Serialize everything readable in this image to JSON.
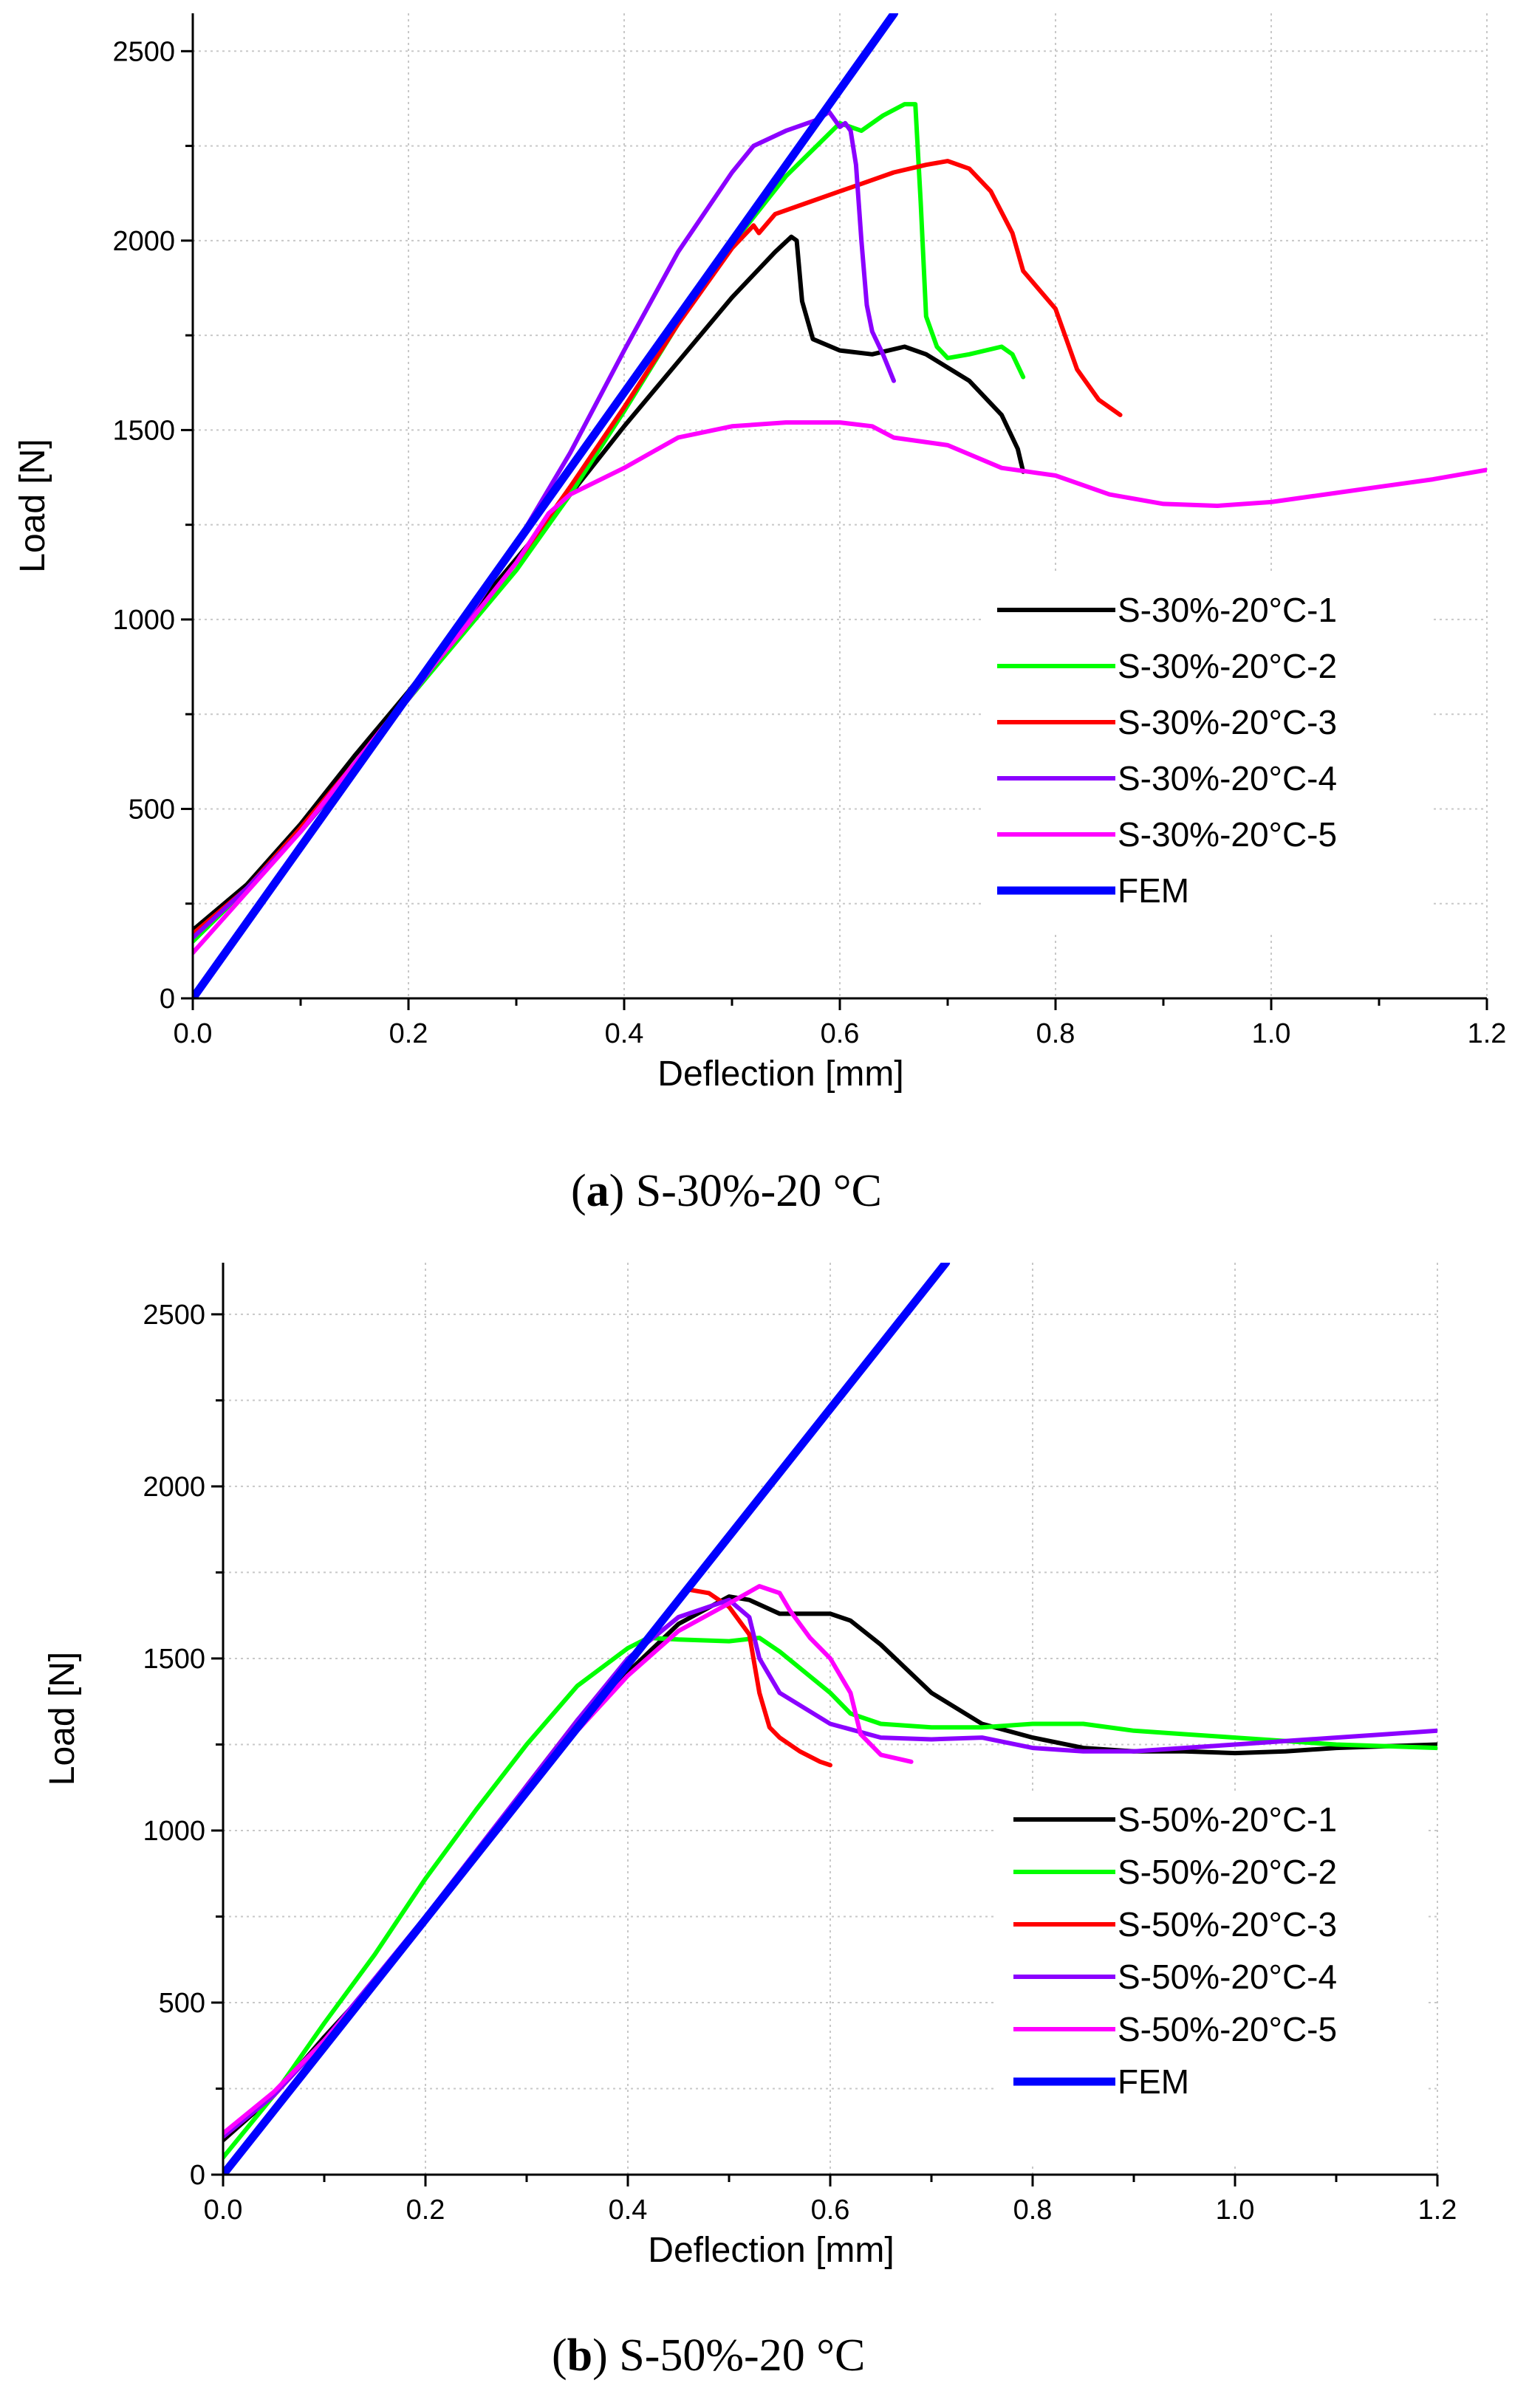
{
  "chart_data": [
    {
      "type": "line",
      "caption_letter": "a",
      "caption_rest": ") S-30%-20 °C",
      "caption_open": "(",
      "xlabel": "Deflection [mm]",
      "ylabel": "Load [N]",
      "xlim": [
        0,
        1.2
      ],
      "ylim": [
        0,
        2600
      ],
      "xticks": [
        "0.0",
        "0.2",
        "0.4",
        "0.6",
        "0.8",
        "1.0",
        "1.2"
      ],
      "yticks": [
        "0",
        "500",
        "1000",
        "1500",
        "2000",
        "2500"
      ],
      "legend_position": "right",
      "series": [
        {
          "name": "S-30%-20°C-1",
          "color": "#000000",
          "x": [
            0,
            0.05,
            0.1,
            0.15,
            0.2,
            0.25,
            0.3,
            0.35,
            0.4,
            0.45,
            0.5,
            0.54,
            0.555,
            0.56,
            0.565,
            0.575,
            0.6,
            0.63,
            0.66,
            0.68,
            0.72,
            0.75,
            0.765,
            0.77
          ],
          "y": [
            180,
            300,
            460,
            640,
            810,
            990,
            1160,
            1330,
            1510,
            1680,
            1850,
            1970,
            2010,
            2000,
            1840,
            1740,
            1710,
            1700,
            1720,
            1700,
            1630,
            1540,
            1450,
            1390
          ]
        },
        {
          "name": "S-30%-20°C-2",
          "color": "#00ff00",
          "x": [
            0,
            0.05,
            0.1,
            0.15,
            0.2,
            0.25,
            0.3,
            0.35,
            0.4,
            0.45,
            0.5,
            0.55,
            0.6,
            0.62,
            0.64,
            0.66,
            0.67,
            0.675,
            0.68,
            0.69,
            0.7,
            0.72,
            0.75,
            0.76,
            0.77
          ],
          "y": [
            150,
            290,
            440,
            610,
            790,
            960,
            1130,
            1330,
            1550,
            1780,
            1990,
            2170,
            2310,
            2290,
            2330,
            2360,
            2360,
            2100,
            1800,
            1720,
            1690,
            1700,
            1720,
            1700,
            1640
          ]
        },
        {
          "name": "S-30%-20°C-3",
          "color": "#ff0000",
          "x": [
            0,
            0.05,
            0.1,
            0.15,
            0.2,
            0.25,
            0.3,
            0.35,
            0.4,
            0.45,
            0.5,
            0.52,
            0.525,
            0.54,
            0.57,
            0.6,
            0.62,
            0.65,
            0.68,
            0.7,
            0.72,
            0.74,
            0.76,
            0.77,
            0.8,
            0.82,
            0.84,
            0.86
          ],
          "y": [
            170,
            290,
            450,
            620,
            800,
            970,
            1150,
            1350,
            1560,
            1780,
            1980,
            2040,
            2020,
            2070,
            2100,
            2130,
            2150,
            2180,
            2200,
            2210,
            2190,
            2130,
            2020,
            1920,
            1820,
            1660,
            1580,
            1540
          ]
        },
        {
          "name": "S-30%-20°C-4",
          "color": "#8b00ff",
          "x": [
            0,
            0.05,
            0.1,
            0.15,
            0.2,
            0.25,
            0.3,
            0.35,
            0.4,
            0.45,
            0.5,
            0.52,
            0.55,
            0.58,
            0.59,
            0.6,
            0.605,
            0.61,
            0.615,
            0.62,
            0.625,
            0.63,
            0.64,
            0.65
          ],
          "y": [
            160,
            290,
            440,
            610,
            790,
            980,
            1200,
            1440,
            1710,
            1970,
            2180,
            2250,
            2290,
            2320,
            2340,
            2300,
            2310,
            2290,
            2200,
            2000,
            1830,
            1760,
            1700,
            1630
          ]
        },
        {
          "name": "S-30%-20°C-5",
          "color": "#ff00ff",
          "x": [
            0,
            0.05,
            0.1,
            0.15,
            0.2,
            0.25,
            0.3,
            0.33,
            0.35,
            0.4,
            0.45,
            0.5,
            0.55,
            0.6,
            0.63,
            0.65,
            0.7,
            0.75,
            0.8,
            0.85,
            0.9,
            0.95,
            1.0,
            1.05,
            1.1,
            1.15,
            1.2
          ],
          "y": [
            120,
            280,
            440,
            620,
            800,
            970,
            1150,
            1280,
            1330,
            1400,
            1480,
            1510,
            1520,
            1520,
            1510,
            1480,
            1460,
            1400,
            1380,
            1330,
            1305,
            1300,
            1310,
            1330,
            1350,
            1370,
            1395
          ]
        },
        {
          "name": "FEM",
          "color": "#0000ff",
          "x": [
            0,
            0.6504
          ],
          "y": [
            0,
            2600
          ]
        }
      ]
    },
    {
      "type": "line",
      "caption_letter": "b",
      "caption_rest": ") S-50%-20 °C",
      "caption_open": "(",
      "xlabel": "Deflection [mm]",
      "ylabel": "Load [N]",
      "xlim": [
        0,
        1.2
      ],
      "ylim": [
        0,
        2650
      ],
      "xticks": [
        "0.0",
        "0.2",
        "0.4",
        "0.6",
        "0.8",
        "1.0",
        "1.2"
      ],
      "yticks": [
        "0",
        "500",
        "1000",
        "1500",
        "2000",
        "2500"
      ],
      "legend_position": "right",
      "series": [
        {
          "name": "S-50%-20°C-1",
          "color": "#000000",
          "x": [
            0,
            0.05,
            0.1,
            0.15,
            0.2,
            0.25,
            0.3,
            0.35,
            0.4,
            0.45,
            0.5,
            0.52,
            0.55,
            0.6,
            0.62,
            0.65,
            0.7,
            0.75,
            0.8,
            0.85,
            0.9,
            0.95,
            1.0,
            1.05,
            1.1,
            1.15,
            1.2
          ],
          "y": [
            100,
            230,
            400,
            560,
            740,
            920,
            1110,
            1300,
            1460,
            1600,
            1680,
            1670,
            1630,
            1630,
            1610,
            1540,
            1400,
            1310,
            1270,
            1240,
            1230,
            1230,
            1225,
            1230,
            1240,
            1245,
            1250
          ]
        },
        {
          "name": "S-50%-20°C-2",
          "color": "#00ff00",
          "x": [
            0,
            0.05,
            0.1,
            0.15,
            0.2,
            0.25,
            0.3,
            0.35,
            0.4,
            0.42,
            0.45,
            0.5,
            0.53,
            0.55,
            0.6,
            0.62,
            0.65,
            0.7,
            0.75,
            0.8,
            0.85,
            0.9,
            0.95,
            1.0,
            1.05,
            1.1,
            1.15,
            1.2
          ],
          "y": [
            50,
            230,
            440,
            640,
            860,
            1060,
            1250,
            1420,
            1530,
            1560,
            1555,
            1550,
            1560,
            1520,
            1400,
            1340,
            1310,
            1300,
            1300,
            1310,
            1310,
            1290,
            1280,
            1270,
            1260,
            1250,
            1245,
            1240
          ]
        },
        {
          "name": "S-50%-20°C-3",
          "color": "#ff0000",
          "x": [
            0,
            0.05,
            0.1,
            0.15,
            0.2,
            0.25,
            0.3,
            0.35,
            0.4,
            0.43,
            0.46,
            0.48,
            0.5,
            0.52,
            0.53,
            0.54,
            0.55,
            0.57,
            0.59,
            0.6
          ],
          "y": [
            110,
            230,
            390,
            560,
            740,
            930,
            1130,
            1320,
            1480,
            1600,
            1700,
            1690,
            1650,
            1570,
            1400,
            1300,
            1270,
            1230,
            1200,
            1190
          ]
        },
        {
          "name": "S-50%-20°C-4",
          "color": "#8b00ff",
          "x": [
            0,
            0.05,
            0.1,
            0.15,
            0.2,
            0.25,
            0.3,
            0.35,
            0.4,
            0.45,
            0.5,
            0.52,
            0.53,
            0.55,
            0.6,
            0.65,
            0.7,
            0.75,
            0.8,
            0.85,
            0.9,
            0.95,
            1.0,
            1.05,
            1.1,
            1.15,
            1.2
          ],
          "y": [
            110,
            230,
            390,
            570,
            750,
            940,
            1130,
            1320,
            1500,
            1620,
            1670,
            1620,
            1500,
            1400,
            1310,
            1270,
            1265,
            1270,
            1240,
            1230,
            1230,
            1240,
            1250,
            1260,
            1270,
            1280,
            1290
          ]
        },
        {
          "name": "S-50%-20°C-5",
          "color": "#ff00ff",
          "x": [
            0,
            0.05,
            0.1,
            0.15,
            0.2,
            0.25,
            0.3,
            0.35,
            0.4,
            0.45,
            0.5,
            0.53,
            0.55,
            0.56,
            0.58,
            0.6,
            0.62,
            0.63,
            0.65,
            0.68
          ],
          "y": [
            120,
            240,
            390,
            560,
            740,
            920,
            1110,
            1290,
            1450,
            1580,
            1660,
            1710,
            1690,
            1640,
            1560,
            1500,
            1400,
            1280,
            1220,
            1200
          ]
        },
        {
          "name": "FEM",
          "color": "#0000ff",
          "x": [
            0,
            0.7144
          ],
          "y": [
            0,
            2650
          ]
        }
      ]
    }
  ]
}
